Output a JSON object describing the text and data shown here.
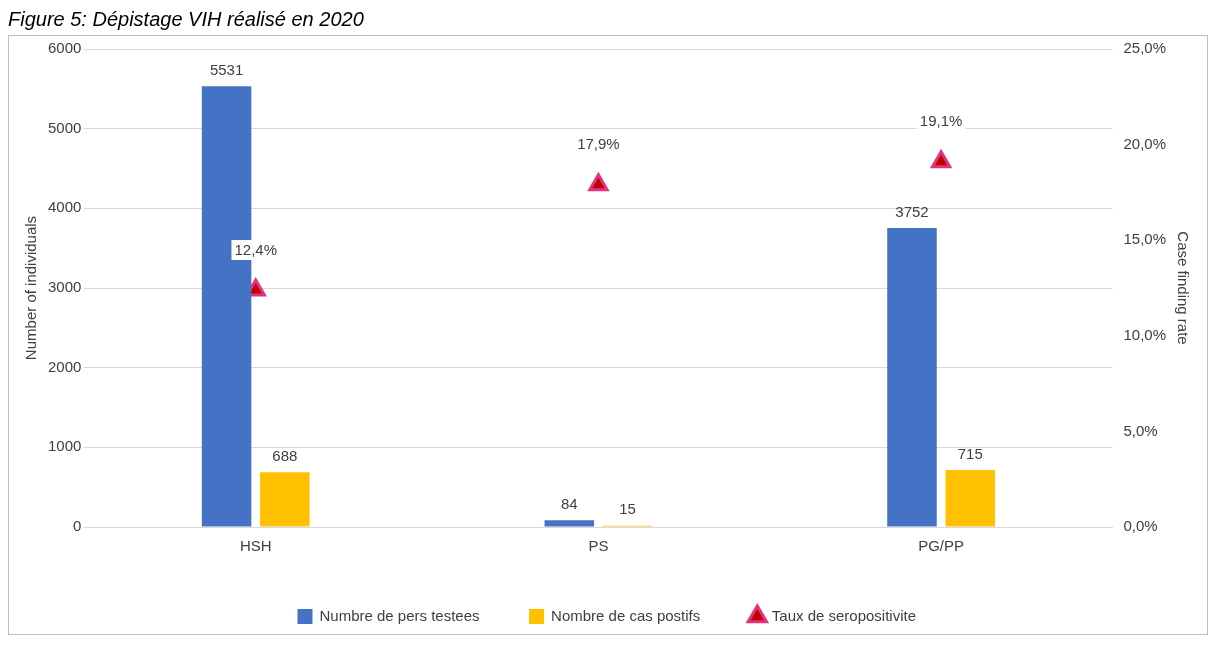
{
  "chart_data": {
    "type": "bar",
    "title": "Figure 5: Dépistage VIH réalisé en 2020",
    "ylabel": "Number of individuals",
    "y2label": "Case finding rate",
    "categories": [
      "HSH",
      "PS",
      "PG/PP"
    ],
    "series": [
      {
        "name": "Numbre de pers testees",
        "color": "#4472c4",
        "values": [
          5531,
          84,
          3752
        ],
        "value_labels": [
          "5531",
          "84",
          "3752"
        ]
      },
      {
        "name": "Nombre de cas postifs",
        "color": "#ffc000",
        "values": [
          688,
          15,
          715
        ],
        "value_labels": [
          "688",
          "15",
          "715"
        ]
      },
      {
        "name": "Taux de seropositivite",
        "type": "scatter",
        "axis": "y2",
        "color": "#e0347f",
        "marker": "triangle",
        "x": [
          "HSH",
          "PS",
          "PG/PP"
        ],
        "values": [
          12.4,
          17.9,
          19.1
        ],
        "value_labels": [
          "12,4%",
          "17,9%",
          "19,1%"
        ]
      }
    ],
    "ylim": [
      0,
      6000
    ],
    "yticks": [
      0,
      1000,
      2000,
      3000,
      4000,
      5000,
      6000
    ],
    "y2lim": [
      0,
      25
    ],
    "y2ticks": [
      {
        "value": 0,
        "label": "0,0%"
      },
      {
        "value": 5,
        "label": "5,0%"
      },
      {
        "value": 10,
        "label": "10,0%"
      },
      {
        "value": 15,
        "label": "15,0%"
      },
      {
        "value": 20,
        "label": "20,0%"
      },
      {
        "value": 25,
        "label": "25,0%"
      }
    ],
    "grid": "y",
    "legend": "bottom"
  }
}
